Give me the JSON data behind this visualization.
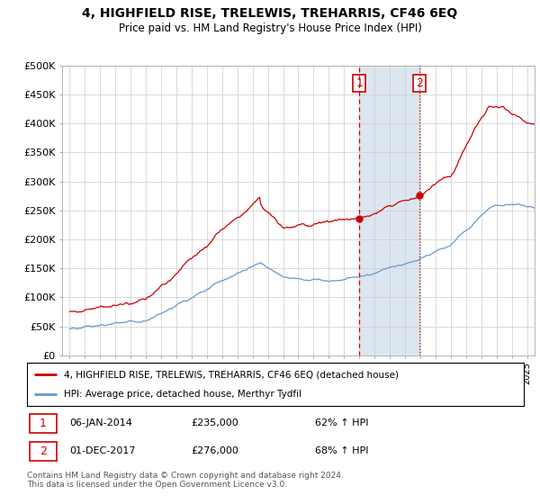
{
  "title": "4, HIGHFIELD RISE, TRELEWIS, TREHARRIS, CF46 6EQ",
  "subtitle": "Price paid vs. HM Land Registry's House Price Index (HPI)",
  "legend_line1": "4, HIGHFIELD RISE, TRELEWIS, TREHARRIS, CF46 6EQ (detached house)",
  "legend_line2": "HPI: Average price, detached house, Merthyr Tydfil",
  "marker1_date": "06-JAN-2014",
  "marker1_price": 235000,
  "marker1_hpi": "62% ↑ HPI",
  "marker1_x": 2014.0,
  "marker2_date": "01-DEC-2017",
  "marker2_price": 276000,
  "marker2_hpi": "68% ↑ HPI",
  "marker2_x": 2017.92,
  "footer": "Contains HM Land Registry data © Crown copyright and database right 2024.\nThis data is licensed under the Open Government Licence v3.0.",
  "red_color": "#cc0000",
  "blue_color": "#6699cc",
  "shade_color": "#dce6f0",
  "ylim": [
    0,
    500000
  ],
  "yticks": [
    0,
    50000,
    100000,
    150000,
    200000,
    250000,
    300000,
    350000,
    400000,
    450000,
    500000
  ],
  "xlim": [
    1994.5,
    2025.5
  ]
}
